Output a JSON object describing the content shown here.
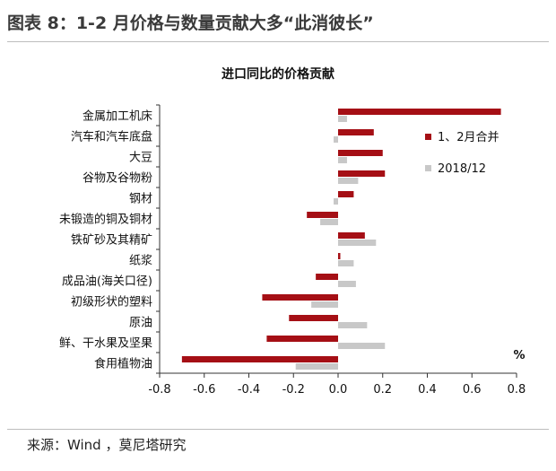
{
  "figure": {
    "title": "图表 8：1-2 月价格与数量贡献大多“此消彼长”",
    "source": "来源：Wind ，莫尼塔研究"
  },
  "colors": {
    "series1": "#a50f15",
    "series2": "#c8c8c8"
  },
  "chart_data": {
    "type": "bar",
    "orientation": "horizontal",
    "title": "进口同比的价格贡献",
    "unit_label": "%",
    "categories": [
      "金属加工机床",
      "汽车和汽车底盘",
      "大豆",
      "谷物及谷物粉",
      "钢材",
      "未锻造的铜及铜材",
      "铁矿砂及其精矿",
      "纸浆",
      "成品油(海关口径)",
      "初级形状的塑料",
      "原油",
      "鲜、干水果及坚果",
      "食用植物油"
    ],
    "series": [
      {
        "name": "1、2月合并",
        "values": [
          0.73,
          0.16,
          0.2,
          0.21,
          0.07,
          -0.14,
          0.12,
          0.01,
          -0.1,
          -0.34,
          -0.22,
          -0.32,
          -0.7
        ]
      },
      {
        "name": "2018/12",
        "values": [
          0.04,
          -0.02,
          0.04,
          0.09,
          -0.02,
          -0.08,
          0.17,
          0.07,
          0.08,
          -0.12,
          0.13,
          0.21,
          -0.19
        ]
      }
    ],
    "xticks": [
      "-0.8",
      "-0.6",
      "-0.4",
      "-0.2",
      "0.0",
      "0.2",
      "0.4",
      "0.6",
      "0.8"
    ],
    "xlim": [
      -0.8,
      0.8
    ],
    "grid": false,
    "legend_position": "right"
  }
}
